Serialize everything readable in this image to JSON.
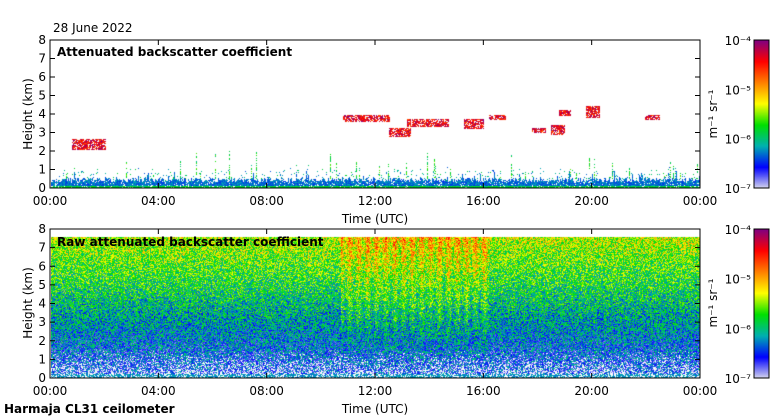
{
  "date": "28 June 2022",
  "footer": "Harmaja CL31 ceilometer",
  "chart_data": [
    {
      "type": "heatmap",
      "title": "Attenuated backscatter coefficient",
      "xlabel": "Time (UTC)",
      "ylabel": "Height (km)",
      "xticks": [
        "00:00",
        "04:00",
        "08:00",
        "12:00",
        "16:00",
        "20:00",
        "00:00"
      ],
      "xlim_hours": [
        0,
        24
      ],
      "yticks": [
        "0",
        "1",
        "2",
        "3",
        "4",
        "5",
        "6",
        "7",
        "8"
      ],
      "ylim": [
        0,
        8
      ],
      "features": [
        {
          "name": "boundary layer",
          "height_km": [
            0,
            0.6
          ],
          "time_h": [
            0,
            24
          ]
        },
        {
          "name": "cloud layer",
          "height_km": [
            2.8,
            4.2
          ],
          "time_h": [
            10.8,
            22.3
          ]
        },
        {
          "name": "low clouds",
          "height_km": [
            2,
            2.5
          ],
          "time_h": [
            0.8,
            2
          ]
        }
      ]
    },
    {
      "type": "heatmap",
      "title": "Raw attenuated backscatter coefficient",
      "xlabel": "Time (UTC)",
      "ylabel": "Height (km)",
      "xticks": [
        "00:00",
        "04:00",
        "08:00",
        "12:00",
        "16:00",
        "20:00",
        "00:00"
      ],
      "xlim_hours": [
        0,
        24
      ],
      "yticks": [
        "0",
        "1",
        "2",
        "3",
        "4",
        "5",
        "6",
        "7",
        "8"
      ],
      "ylim": [
        0,
        8
      ]
    }
  ],
  "colorbar": {
    "unit_label": "m⁻¹ sr⁻¹",
    "ticks": [
      "10⁻⁴",
      "10⁻⁵",
      "10⁻⁶",
      "10⁻⁷"
    ],
    "range": [
      1e-07,
      0.0001
    ],
    "colors": [
      "#d8d8ec",
      "#0000ff",
      "#00b0b0",
      "#00e000",
      "#ffff00",
      "#ff8000",
      "#ff0000",
      "#800080"
    ]
  }
}
